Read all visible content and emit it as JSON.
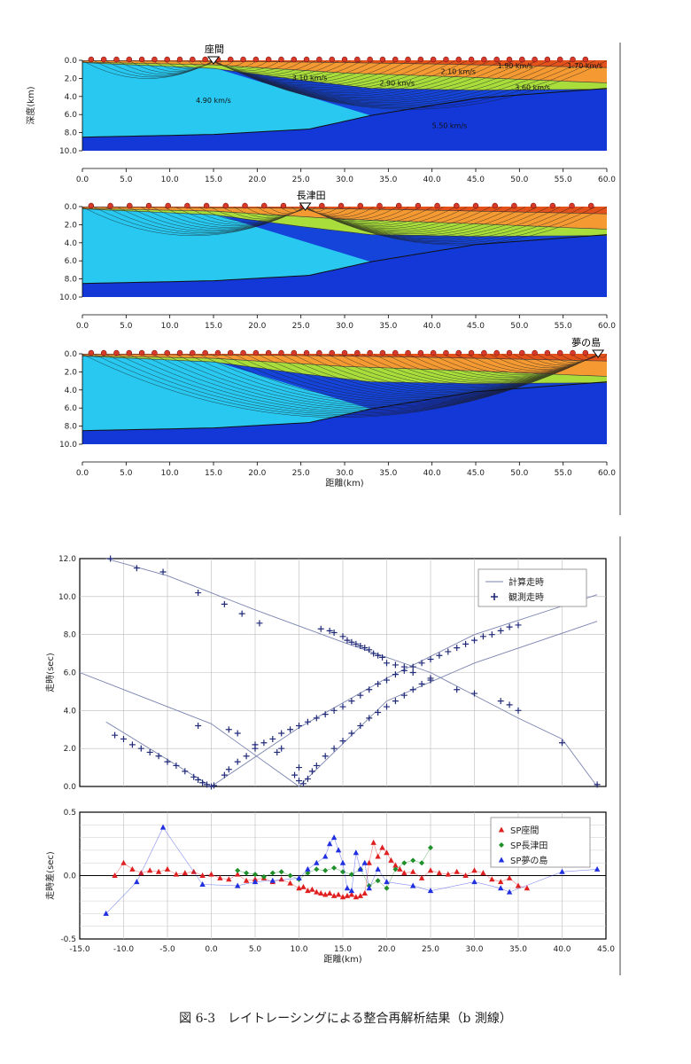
{
  "caption": "図 6-3　レイトレーシングによる整合再解析結果（b 測線）",
  "colors": {
    "layer_surface": "#e4521b",
    "layer_orange": "#f59a32",
    "layer_green": "#a8dd3c",
    "layer_cyan": "#29c8f0",
    "layer_blue": "#1438d8",
    "ray": "#1a1a1a",
    "shot": "#d83a2a",
    "travel_plus": "#202a78",
    "calc_line": "#7a84b0",
    "res_red": "#e02020",
    "res_green": "#20902a",
    "res_blue": "#2030e0"
  },
  "chart_data": [
    {
      "type": "cross-section",
      "ylabel": "深度(km)",
      "xlabel": "",
      "xlim": [
        0,
        60
      ],
      "ylim": [
        10,
        0
      ],
      "x_ticks": [
        "0.0",
        "5.0",
        "10.0",
        "15.0",
        "20.0",
        "25.0",
        "30.0",
        "35.0",
        "40.0",
        "45.0",
        "50.0",
        "55.0",
        "60.0"
      ],
      "y_ticks": [
        "0.0",
        "2.0",
        "4.0",
        "6.0",
        "8.0",
        "10.0"
      ],
      "shot_label": "座間",
      "shot_x": 15,
      "velocity_labels": [
        {
          "text": "1.90 km/s",
          "x": 49.5,
          "y": 0.9
        },
        {
          "text": "1.70 km/s",
          "x": 57.5,
          "y": 0.9
        },
        {
          "text": "2.10 km/s",
          "x": 43,
          "y": 1.5
        },
        {
          "text": "3.10 km/s",
          "x": 26,
          "y": 2.2
        },
        {
          "text": "2.90 km/s",
          "x": 36,
          "y": 2.8
        },
        {
          "text": "3.60 km/s",
          "x": 51.5,
          "y": 3.3
        },
        {
          "text": "4.90 km/s",
          "x": 15,
          "y": 4.7
        },
        {
          "text": "5.50 km/s",
          "x": 42,
          "y": 7.5
        }
      ]
    },
    {
      "type": "cross-section",
      "ylabel": "",
      "xlabel": "",
      "xlim": [
        0,
        60
      ],
      "ylim": [
        10,
        0
      ],
      "x_ticks": [
        "0.0",
        "5.0",
        "10.0",
        "15.0",
        "20.0",
        "25.0",
        "30.0",
        "35.0",
        "40.0",
        "45.0",
        "50.0",
        "55.0",
        "60.0"
      ],
      "y_ticks": [
        "0.0",
        "2.0",
        "4.0",
        "6.0",
        "8.0",
        "10.0"
      ],
      "shot_label": "長津田",
      "shot_x": 25.5
    },
    {
      "type": "cross-section",
      "ylabel": "",
      "xlabel": "距離(km)",
      "xlim": [
        0,
        60
      ],
      "ylim": [
        10,
        0
      ],
      "x_ticks": [
        "0.0",
        "5.0",
        "10.0",
        "15.0",
        "20.0",
        "25.0",
        "30.0",
        "35.0",
        "40.0",
        "45.0",
        "50.0",
        "55.0",
        "60.0"
      ],
      "y_ticks": [
        "0.0",
        "2.0",
        "4.0",
        "6.0",
        "8.0",
        "10.0"
      ],
      "shot_label": "夢の島",
      "shot_x": 59
    },
    {
      "type": "scatter",
      "ylabel": "走時(sec)",
      "xlabel": "",
      "xlim": [
        -15,
        45
      ],
      "ylim": [
        0,
        12
      ],
      "y_ticks": [
        "0.0",
        "2.0",
        "4.0",
        "6.0",
        "8.0",
        "10.0",
        "12.0"
      ],
      "grid": true,
      "legend": {
        "position": "top-right",
        "entries": [
          "計算走時",
          "観測走時"
        ]
      },
      "calc_series": [
        {
          "name": "座間",
          "x": [
            -12,
            0,
            10,
            20,
            30,
            44
          ],
          "y": [
            3.4,
            0.0,
            3.1,
            5.7,
            8.0,
            10.1
          ]
        },
        {
          "name": "長津田",
          "x": [
            -15,
            0,
            10,
            20,
            30,
            44
          ],
          "y": [
            6.0,
            3.3,
            0.0,
            4.5,
            6.5,
            8.7
          ]
        },
        {
          "name": "夢の島",
          "x": [
            -12,
            -5,
            5,
            15,
            25,
            35,
            40,
            44
          ],
          "y": [
            12.0,
            11.1,
            9.3,
            7.6,
            6.0,
            3.6,
            2.5,
            0.0
          ]
        }
      ],
      "observed": [
        {
          "name": "座間",
          "x": [
            -11,
            -10,
            -9,
            -8,
            -7,
            -6,
            -5,
            -4,
            -3,
            -2,
            -1.5,
            -1,
            -0.5,
            0,
            0.3,
            1.5,
            2,
            3,
            4,
            5,
            6,
            7,
            8,
            9,
            10,
            11,
            12,
            13,
            14,
            15,
            16,
            17,
            18,
            19,
            20,
            21,
            22,
            23,
            24,
            25,
            26,
            27,
            28,
            29,
            30,
            31,
            32,
            33,
            34,
            35
          ],
          "y": [
            2.7,
            2.5,
            2.2,
            2.0,
            1.8,
            1.6,
            1.3,
            1.1,
            0.8,
            0.5,
            0.35,
            0.2,
            0.1,
            0.0,
            0.05,
            0.6,
            0.9,
            1.3,
            1.6,
            2.0,
            2.3,
            2.5,
            2.8,
            3.0,
            3.2,
            3.4,
            3.6,
            3.8,
            4.0,
            4.2,
            4.5,
            4.8,
            5.1,
            5.4,
            5.6,
            5.9,
            6.1,
            6.3,
            6.5,
            6.7,
            6.9,
            7.1,
            7.3,
            7.5,
            7.7,
            7.9,
            8.0,
            8.2,
            8.4,
            8.5
          ]
        },
        {
          "name": "長津田",
          "x": [
            -11.5,
            -8.5,
            -5.5,
            -1.5,
            1.5,
            3.5,
            5.5,
            8,
            9.5,
            10,
            10.5,
            11,
            11.5,
            12,
            13,
            14,
            15,
            16,
            17,
            18,
            19,
            20,
            21,
            22,
            23,
            24,
            25
          ],
          "y": [
            12.0,
            11.5,
            11.3,
            10.2,
            9.6,
            9.1,
            8.6,
            2.0,
            0.6,
            0.3,
            0.15,
            0.4,
            0.8,
            1.1,
            1.6,
            2.0,
            2.4,
            2.8,
            3.2,
            3.6,
            3.9,
            4.2,
            4.5,
            4.8,
            5.1,
            5.4,
            5.7
          ]
        },
        {
          "name": "夢の島",
          "x": [
            -1.5,
            2,
            3,
            5,
            7.5,
            10,
            12.5,
            13.5,
            14,
            15,
            15.5,
            16,
            16.5,
            17,
            17.5,
            18,
            18.5,
            19,
            19.5,
            20,
            21,
            22,
            23,
            25,
            28,
            30,
            33,
            34,
            35,
            40,
            44
          ],
          "y": [
            3.2,
            3.0,
            2.8,
            2.2,
            1.8,
            1.0,
            8.3,
            8.2,
            8.1,
            7.9,
            7.7,
            7.6,
            7.5,
            7.4,
            7.3,
            7.2,
            7.0,
            6.9,
            6.8,
            6.5,
            6.4,
            6.3,
            6.0,
            5.6,
            5.1,
            4.9,
            4.5,
            4.3,
            4.0,
            2.3,
            0.1
          ]
        }
      ]
    },
    {
      "type": "scatter",
      "ylabel": "走時差(sec)",
      "xlabel": "距離(km)",
      "xlim": [
        -15,
        45
      ],
      "ylim": [
        -0.5,
        0.5
      ],
      "x_ticks": [
        "-15.0",
        "-10.0",
        "-5.0",
        "0.0",
        "5.0",
        "10.0",
        "15.0",
        "20.0",
        "25.0",
        "30.0",
        "35.0",
        "40.0",
        "45.0"
      ],
      "y_ticks": [
        "0.5",
        "0.0",
        "-0.5"
      ],
      "grid": true,
      "legend": {
        "position": "top-right",
        "entries": [
          "SP座間",
          "SP長津田",
          "SP夢の島"
        ]
      },
      "series": [
        {
          "name": "SP座間",
          "x": [
            -11,
            -10,
            -9,
            -8,
            -7,
            -6,
            -5,
            -4,
            -3,
            -2,
            -1,
            0,
            1,
            2,
            3,
            4,
            5,
            6,
            7,
            8,
            9,
            10,
            10.5,
            11,
            11.5,
            12,
            12.5,
            13,
            13.5,
            14,
            14.5,
            15,
            15.5,
            16,
            16.5,
            17,
            17.5,
            18,
            18.5,
            19,
            19.5,
            20,
            20.5,
            21,
            21.5,
            22,
            23,
            24,
            25,
            26,
            27,
            28,
            29,
            30,
            31,
            32,
            33,
            34,
            35,
            36
          ],
          "y": [
            0.0,
            0.1,
            0.05,
            0.02,
            0.04,
            0.03,
            0.05,
            0.01,
            0.02,
            0.03,
            0.0,
            0.01,
            -0.02,
            -0.03,
            0.01,
            -0.04,
            -0.03,
            -0.02,
            -0.05,
            -0.03,
            -0.06,
            -0.1,
            -0.09,
            -0.12,
            -0.11,
            -0.13,
            -0.14,
            -0.15,
            -0.14,
            -0.16,
            -0.15,
            -0.17,
            -0.16,
            -0.15,
            -0.17,
            -0.16,
            -0.14,
            0.1,
            0.26,
            0.15,
            0.22,
            0.18,
            0.12,
            0.08,
            0.05,
            0.02,
            0.03,
            -0.02,
            0.04,
            0.02,
            0.01,
            0.03,
            0.0,
            0.04,
            0.02,
            -0.03,
            -0.05,
            -0.02,
            -0.08,
            -0.1
          ]
        },
        {
          "name": "SP長津田",
          "x": [
            3,
            4,
            5,
            6,
            7,
            8,
            9,
            10,
            11,
            12,
            13,
            14,
            15,
            16,
            17,
            18,
            19,
            20,
            21,
            22,
            23,
            24,
            25
          ],
          "y": [
            0.04,
            0.02,
            0.01,
            -0.01,
            0.02,
            0.03,
            0.0,
            -0.03,
            0.02,
            0.05,
            0.04,
            0.06,
            0.03,
            0.01,
            0.05,
            -0.08,
            -0.04,
            -0.1,
            0.05,
            0.1,
            0.12,
            0.1,
            0.22
          ]
        },
        {
          "name": "SP夢の島",
          "x": [
            -12,
            -8.5,
            -5.5,
            -1,
            3,
            5,
            7,
            10,
            11,
            12,
            13,
            13.5,
            14,
            14.5,
            15,
            15.5,
            16,
            16.5,
            17,
            17.5,
            18,
            19,
            20,
            23,
            25,
            30,
            33,
            34,
            40,
            44
          ],
          "y": [
            -0.3,
            -0.05,
            0.38,
            -0.07,
            -0.08,
            -0.05,
            -0.04,
            -0.02,
            0.05,
            0.1,
            0.15,
            0.25,
            0.3,
            0.2,
            0.1,
            -0.1,
            -0.12,
            0.18,
            0.05,
            0.1,
            -0.1,
            0.05,
            -0.05,
            -0.08,
            -0.12,
            -0.05,
            -0.1,
            -0.13,
            0.03,
            0.05
          ]
        }
      ]
    }
  ]
}
